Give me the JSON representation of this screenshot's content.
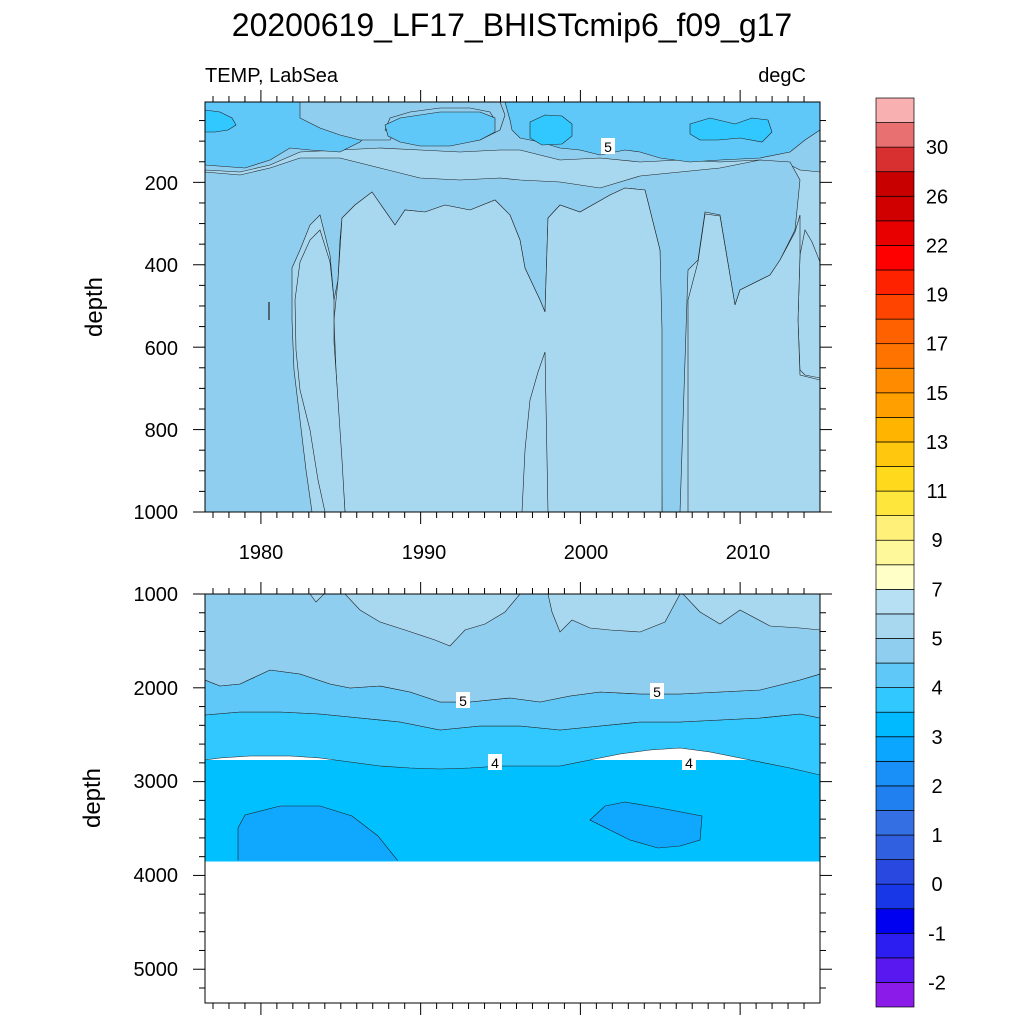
{
  "title": "20200619_LF17_BHISTcmip6_f09_g17",
  "left_subtitle": "TEMP, LabSea",
  "right_subtitle": "degC",
  "colors": {
    "levels": [
      "#f0ff",
      "#8000e0",
      "#6a20f0",
      "#3010f0",
      "#0000f0",
      "#1830e0",
      "#2040e0",
      "#3060e0",
      "#3070e8",
      "#2080f0",
      "#1890f8",
      "#10a0ff",
      "#00b0ff",
      "#00c0ff",
      "#30c8ff",
      "#60c8f8",
      "#90cef0",
      "#a8d8f0",
      "#b8e0f4",
      "#ffffc8",
      "#fff8a0",
      "#fff080",
      "#ffe840",
      "#ffd820",
      "#ffc810",
      "#ffb800",
      "#ffa000",
      "#ff8c00",
      "#ff7800",
      "#ff6400",
      "#ff4800",
      "#ff2800",
      "#ff0000",
      "#e80000",
      "#d00000",
      "#c80000",
      "#d83030",
      "#e87070",
      "#f8b0b0"
    ]
  },
  "colorbar": {
    "labels": [
      "-2",
      "-1",
      "0",
      "1",
      "2",
      "3",
      "4",
      "5",
      "7",
      "9",
      "11",
      "13",
      "15",
      "17",
      "19",
      "22",
      "26",
      "30"
    ],
    "box_colors": [
      "#8b1be8",
      "#5a18f0",
      "#2c1ef0",
      "#0000f0",
      "#1838e8",
      "#2848e0",
      "#3060e0",
      "#3470e4",
      "#2080f0",
      "#1890f8",
      "#0aa6ff",
      "#00baff",
      "#30c8ff",
      "#60c8f8",
      "#90cef0",
      "#a8d8f0",
      "#b8e0f4",
      "#ffffc8",
      "#fff89a",
      "#fff07a",
      "#ffe63c",
      "#ffda1c",
      "#ffc80e",
      "#ffb400",
      "#ffa000",
      "#ff8c00",
      "#ff7400",
      "#ff6000",
      "#ff4400",
      "#ff2200",
      "#ff0000",
      "#e80000",
      "#d00000",
      "#c80000",
      "#d83030",
      "#e87070",
      "#f8b0b0"
    ]
  },
  "chart_data": [
    {
      "type": "contour",
      "panel": "upper",
      "xlabel": "",
      "ylabel": "depth",
      "xlim": [
        1976.5,
        2015
      ],
      "ylim": [
        1000,
        5
      ],
      "x_ticks": [
        "1980",
        "1990",
        "2000",
        "2010"
      ],
      "y_ticks": [
        "200",
        "400",
        "600",
        "800",
        "1000"
      ],
      "contour_labels": [
        "5"
      ],
      "fields": [
        {
          "level": "5-6",
          "color": "#90cef0",
          "note": "background"
        },
        {
          "level": "6-7",
          "color": "#a8d8f0"
        },
        {
          "level": "4-5",
          "color": "#60c8f8"
        },
        {
          "level": "<4",
          "color": "#30c8ff"
        }
      ]
    },
    {
      "type": "contour",
      "panel": "lower",
      "xlabel": "",
      "ylabel": "depth",
      "xlim": [
        1976.5,
        2015
      ],
      "ylim": [
        5400,
        1000
      ],
      "y_ticks": [
        "1000",
        "2000",
        "3000",
        "4000",
        "5000"
      ],
      "contour_labels": [
        "5",
        "5",
        "4",
        "4"
      ],
      "bottom_depth": 3870
    }
  ]
}
